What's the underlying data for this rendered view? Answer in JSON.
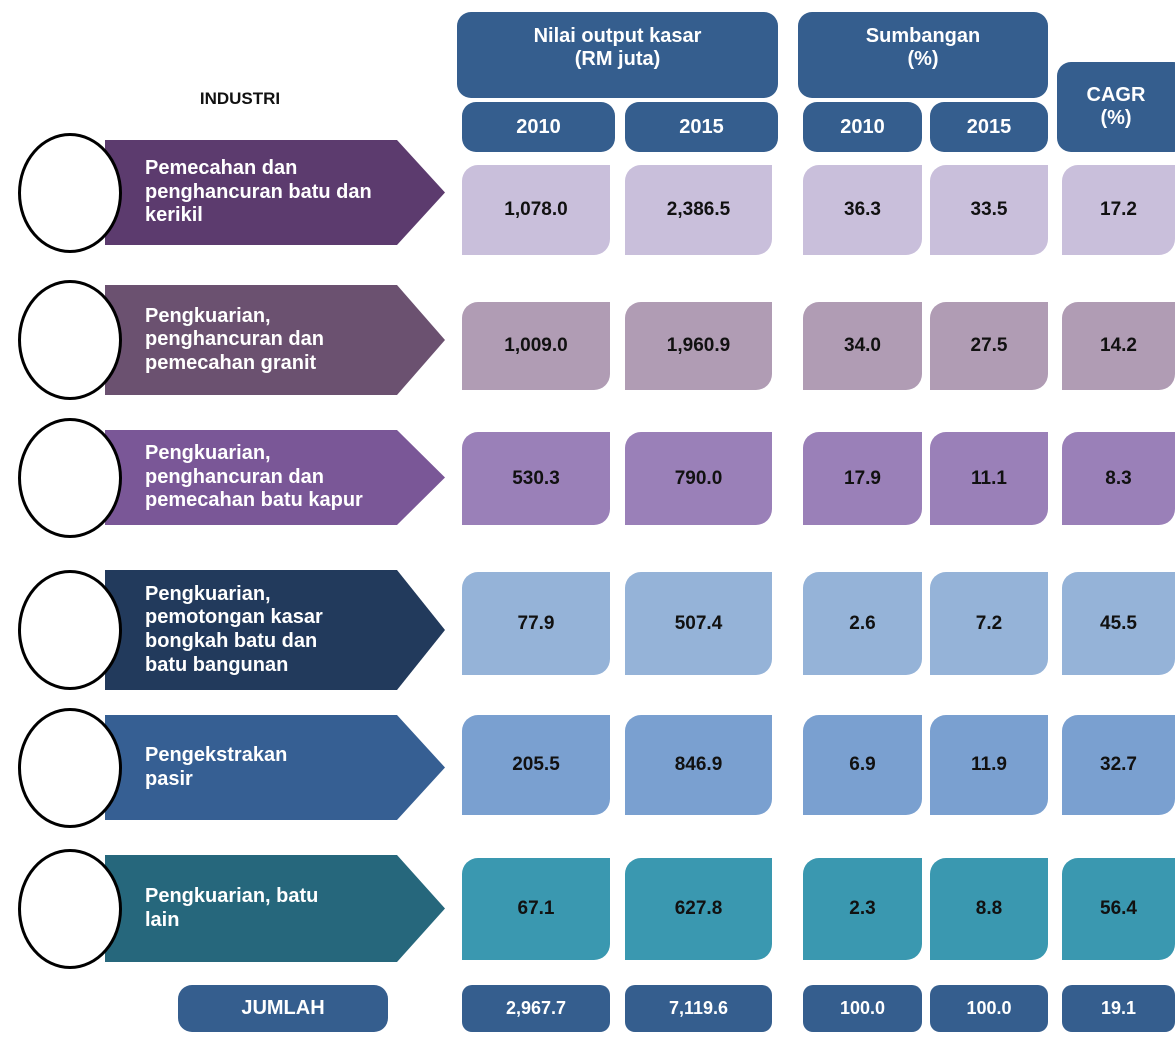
{
  "header": {
    "industry": "INDUSTRI",
    "output": {
      "title": "Nilai output kasar\n(RM juta)",
      "years": [
        "2010",
        "2015"
      ]
    },
    "share": {
      "title": "Sumbangan\n(%)",
      "years": [
        "2010",
        "2015"
      ]
    },
    "cagr": "CAGR\n(%)"
  },
  "rows": [
    {
      "label": "Pemecahan dan\npenghancuran batu dan\nkerikil",
      "values": [
        "1,078.0",
        "2,386.5",
        "36.3",
        "33.5",
        "17.2"
      ]
    },
    {
      "label": "Pengkuarian,\npenghancuran dan\npemecahan granit",
      "values": [
        "1,009.0",
        "1,960.9",
        "34.0",
        "27.5",
        "14.2"
      ]
    },
    {
      "label": "Pengkuarian,\npenghancuran  dan\npemecahan  batu kapur",
      "values": [
        "530.3",
        "790.0",
        "17.9",
        "11.1",
        "8.3"
      ]
    },
    {
      "label": "Pengkuarian,\npemotongan kasar\nbongkah batu dan\nbatu bangunan",
      "values": [
        "77.9",
        "507.4",
        "2.6",
        "7.2",
        "45.5"
      ]
    },
    {
      "label": "Pengekstrakan\npasir",
      "values": [
        "205.5",
        "846.9",
        "6.9",
        "11.9",
        "32.7"
      ]
    },
    {
      "label": "Pengkuarian, batu\nlain",
      "values": [
        "67.1",
        "627.8",
        "2.3",
        "8.8",
        "56.4"
      ]
    }
  ],
  "total": {
    "label": "JUMLAH",
    "values": [
      "2,967.7",
      "7,119.6",
      "100.0",
      "100.0",
      "19.1"
    ]
  }
}
